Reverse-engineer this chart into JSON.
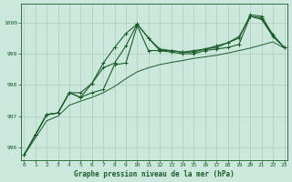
{
  "title": "Graphe pression niveau de la mer (hPa)",
  "background_color": "#cce8dc",
  "grid_color": "#aacfbf",
  "line_color": "#1a5c2a",
  "xlim": [
    -0.3,
    23.3
  ],
  "ylim": [
    995.6,
    1000.6
  ],
  "yticks": [
    996,
    997,
    998,
    999,
    1000
  ],
  "xticks": [
    0,
    1,
    2,
    3,
    4,
    5,
    6,
    7,
    8,
    9,
    10,
    11,
    12,
    13,
    14,
    15,
    16,
    17,
    18,
    19,
    20,
    21,
    22,
    23
  ],
  "line1_x": [
    0,
    1,
    2,
    3,
    4,
    5,
    6,
    7,
    8,
    9,
    10,
    11,
    12,
    13,
    14,
    15,
    16,
    17,
    18,
    19,
    20,
    21,
    22,
    23
  ],
  "line1_y": [
    995.75,
    996.4,
    997.05,
    997.1,
    997.75,
    997.6,
    997.75,
    997.85,
    998.65,
    998.7,
    999.9,
    999.1,
    999.1,
    999.05,
    999.0,
    999.0,
    999.1,
    999.15,
    999.2,
    999.3,
    1000.2,
    1000.1,
    999.55,
    999.2
  ],
  "line2_x": [
    0,
    1,
    2,
    3,
    4,
    5,
    6,
    7,
    8,
    9,
    10,
    11,
    12,
    13,
    14,
    15,
    16,
    17,
    18,
    19,
    20,
    21,
    22,
    23
  ],
  "line2_y": [
    995.75,
    996.4,
    997.05,
    997.1,
    997.75,
    997.75,
    998.05,
    998.7,
    999.2,
    999.65,
    999.95,
    999.5,
    999.1,
    999.1,
    999.05,
    999.1,
    999.15,
    999.25,
    999.35,
    999.55,
    1000.2,
    1000.15,
    999.6,
    999.2
  ],
  "line3_x": [
    0,
    1,
    2,
    3,
    4,
    5,
    6,
    7,
    8,
    9,
    10,
    11,
    12,
    13,
    14,
    15,
    16,
    17,
    18,
    19,
    20,
    21,
    22,
    23
  ],
  "line3_y": [
    995.75,
    996.4,
    997.05,
    997.1,
    997.75,
    997.6,
    998.05,
    998.55,
    998.7,
    999.25,
    999.95,
    999.5,
    999.15,
    999.1,
    999.05,
    999.05,
    999.15,
    999.2,
    999.35,
    999.5,
    1000.25,
    1000.2,
    999.6,
    999.2
  ],
  "line4_x": [
    0,
    1,
    2,
    3,
    4,
    5,
    6,
    7,
    8,
    9,
    10,
    11,
    12,
    13,
    14,
    15,
    16,
    17,
    18,
    19,
    20,
    21,
    22,
    23
  ],
  "line4_y": [
    995.75,
    996.3,
    996.85,
    997.0,
    997.35,
    997.48,
    997.6,
    997.75,
    997.95,
    998.2,
    998.42,
    998.55,
    998.65,
    998.72,
    998.78,
    998.85,
    998.9,
    998.95,
    999.02,
    999.1,
    999.18,
    999.28,
    999.38,
    999.18
  ]
}
